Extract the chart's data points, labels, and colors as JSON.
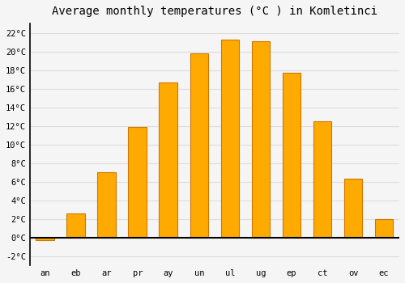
{
  "title": "Average monthly temperatures (°C ) in Komletinci",
  "months": [
    "an",
    "eb",
    "ar",
    "pr",
    "ay",
    "un",
    "ul",
    "ug",
    "ep",
    "ct",
    "ov",
    "ec"
  ],
  "values": [
    -0.3,
    2.6,
    7.0,
    11.9,
    16.7,
    19.8,
    21.3,
    21.1,
    17.7,
    12.5,
    6.3,
    2.0
  ],
  "bar_color": "#FFAA00",
  "bar_edge_color": "#CC7700",
  "ylim": [
    -3,
    23
  ],
  "yticks": [
    -2,
    0,
    2,
    4,
    6,
    8,
    10,
    12,
    14,
    16,
    18,
    20,
    22
  ],
  "background_color": "#f5f5f5",
  "grid_color": "#dddddd",
  "title_fontsize": 10,
  "bar_width": 0.6
}
